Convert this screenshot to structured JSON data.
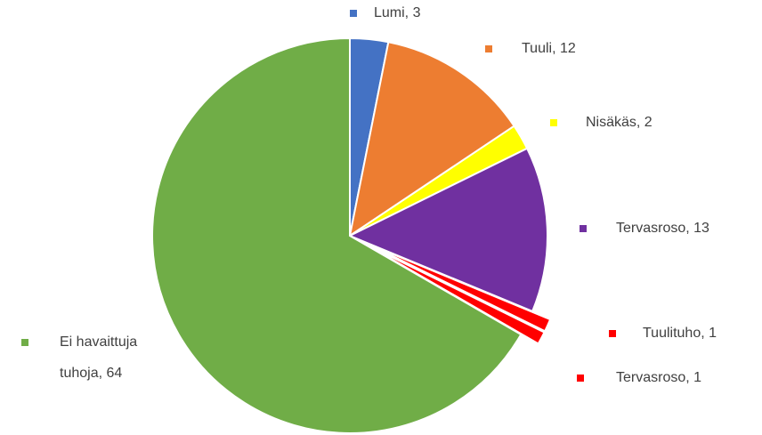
{
  "chart_data": {
    "type": "pie",
    "values": [
      3,
      12,
      2,
      13,
      1,
      1,
      64
    ],
    "value_labels": [
      "Lumi, 3",
      "Tuuli, 12",
      "Nisäkäs, 2",
      "Tervasroso, 13",
      "Tuulituho, 1",
      "Tervasroso, 1",
      "Ei havaittuja tuhoja, 64"
    ],
    "colors": [
      "#4472c4",
      "#ed7d31",
      "#ffff00",
      "#7030a0",
      "#ff0000",
      "#ff0000",
      "#70ad47"
    ],
    "exploded": [
      false,
      false,
      false,
      false,
      true,
      true,
      false
    ]
  }
}
